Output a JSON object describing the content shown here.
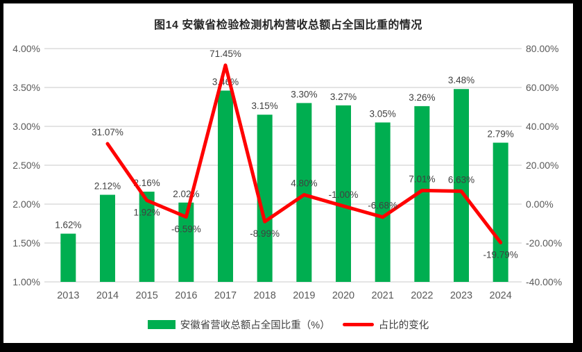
{
  "title": "图14 安徽省检验检测机构营收总额占全国比重的情况",
  "colors": {
    "bar": "#00AE50",
    "line": "#FF0000",
    "grid": "#DCDCDC",
    "axis_text": "#595959",
    "label_text": "#404040",
    "title_text": "#262626",
    "frame": "#000000",
    "background": "#FFFFFF"
  },
  "legend": {
    "bar_label": "安徽省营收总额占全国比重（%）",
    "line_label": "占比的变化"
  },
  "chart_data": {
    "type": "bar+line combo",
    "title": "图14 安徽省检验检测机构营收总额占全国比重的情况",
    "categories": [
      "2013",
      "2014",
      "2015",
      "2016",
      "2017",
      "2018",
      "2019",
      "2020",
      "2021",
      "2022",
      "2023",
      "2024"
    ],
    "series": [
      {
        "name": "安徽省营收总额占全国比重（%）",
        "type": "bar",
        "axis": "left",
        "values": [
          1.62,
          2.12,
          2.16,
          2.02,
          3.46,
          3.15,
          3.3,
          3.27,
          3.05,
          3.26,
          3.48,
          2.79
        ],
        "labels": [
          "1.62%",
          "2.12%",
          "2.16%",
          "2.02%",
          "3.46%",
          "3.15%",
          "3.30%",
          "3.27%",
          "3.05%",
          "3.26%",
          "3.48%",
          "2.79%"
        ]
      },
      {
        "name": "占比的变化",
        "type": "line",
        "axis": "right",
        "values": [
          null,
          31.07,
          1.92,
          -6.59,
          71.45,
          -8.99,
          4.8,
          -1.0,
          -6.68,
          7.01,
          6.63,
          -19.79
        ],
        "labels": [
          null,
          "31.07%",
          "1.92%",
          "-6.59%",
          "71.45%",
          "-8.99%",
          "4.80%",
          "-1.00%",
          "-6.68%",
          "7.01%",
          "6.63%",
          "-19.79%"
        ],
        "label_side": [
          null,
          "above",
          "below",
          "below",
          "above",
          "below",
          "above",
          "above",
          "above",
          "above",
          "above",
          "below"
        ]
      }
    ],
    "left_axis": {
      "min": 1.0,
      "max": 4.0,
      "ticks": [
        "4.00%",
        "3.50%",
        "3.00%",
        "2.50%",
        "2.00%",
        "1.50%",
        "1.00%"
      ]
    },
    "right_axis": {
      "min": -40.0,
      "max": 80.0,
      "ticks": [
        "80.00%",
        "60.00%",
        "40.00%",
        "20.00%",
        "0.00%",
        "-20.00%",
        "-40.00%"
      ]
    },
    "grid": true,
    "legend_position": "bottom"
  }
}
